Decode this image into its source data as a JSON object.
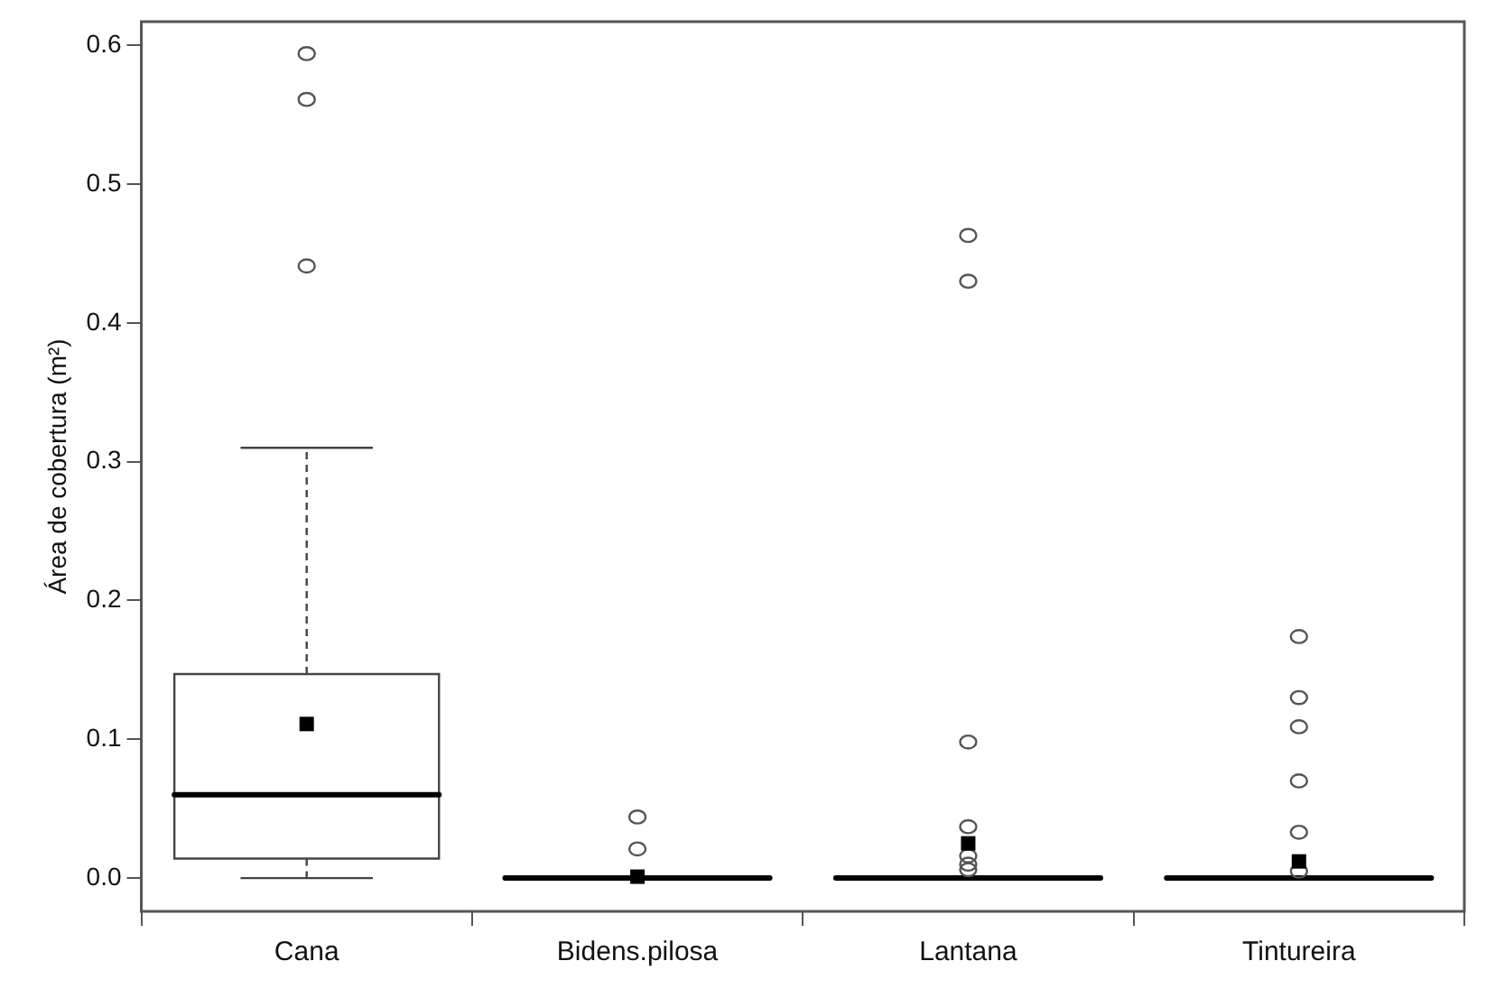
{
  "chart_data": {
    "type": "box",
    "ylabel": "Área de cobertura (m²)",
    "categories": [
      "Cana",
      "Bidens.pilosa",
      "Lantana",
      "Tintureira"
    ],
    "boxes": [
      {
        "low": 0,
        "q1": 0.014,
        "median": 0.06,
        "q3": 0.147,
        "high": 0.31,
        "mean": 0.111,
        "outliers": [
          0.594,
          0.561,
          0.441
        ]
      },
      {
        "low": 0,
        "q1": 0,
        "median": 0,
        "q3": 0,
        "high": 0,
        "mean": 0.001,
        "outliers": [
          0.044,
          0.021
        ]
      },
      {
        "low": 0,
        "q1": 0,
        "median": 0,
        "q3": 0,
        "high": 0,
        "mean": 0.025,
        "outliers": [
          0.463,
          0.43,
          0.098,
          0.037,
          0.016,
          0.01,
          0.006
        ]
      },
      {
        "low": 0,
        "q1": 0,
        "median": 0,
        "q3": 0,
        "high": 0,
        "mean": 0.012,
        "outliers": [
          0.174,
          0.13,
          0.109,
          0.07,
          0.033,
          0.005
        ]
      }
    ],
    "ylim": [
      -0.024,
      0.617
    ],
    "yticks": [
      {
        "value": 0,
        "label": "0.0"
      },
      {
        "value": 0.1,
        "label": "0.1"
      },
      {
        "value": 0.2,
        "label": "0.2"
      },
      {
        "value": 0.3,
        "label": "0.3"
      },
      {
        "value": 0.4,
        "label": "0.4"
      },
      {
        "value": 0.5,
        "label": "0.5"
      },
      {
        "value": 0.6,
        "label": "0.6"
      }
    ],
    "grid": false,
    "legend": false
  }
}
